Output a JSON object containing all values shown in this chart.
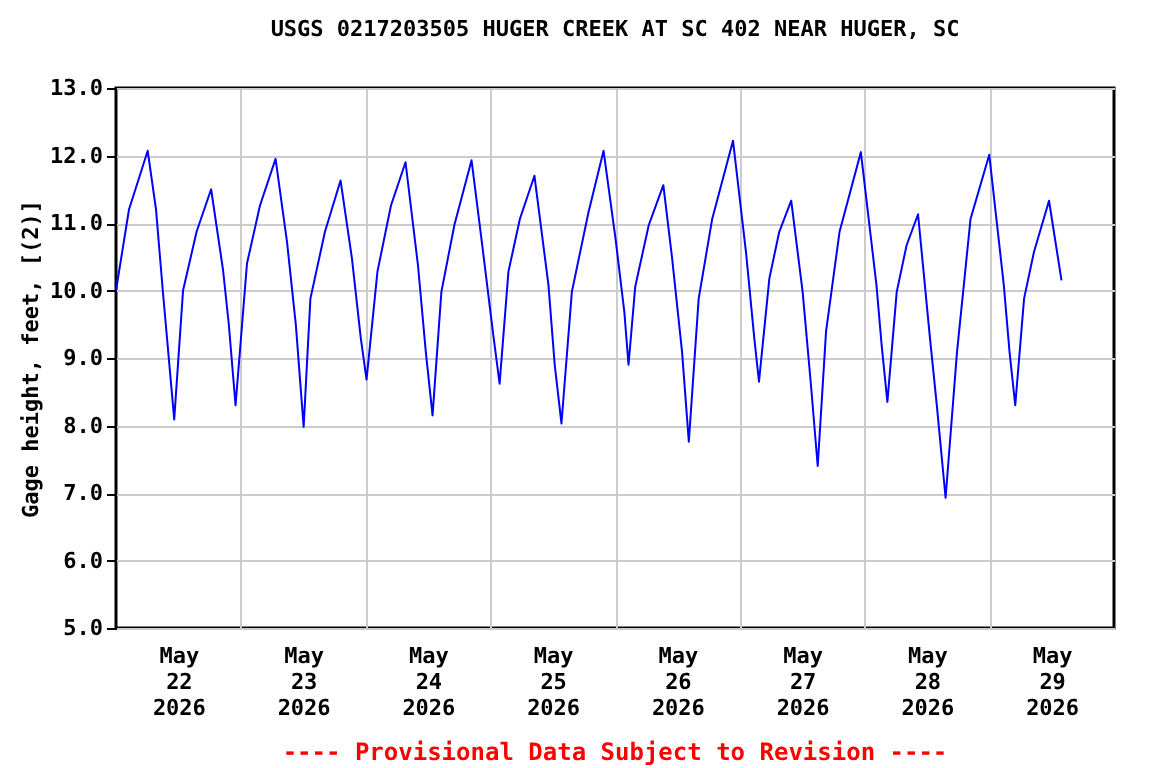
{
  "chart_data": {
    "type": "line",
    "title": "USGS 0217203505 HUGER CREEK AT SC 402 NEAR HUGER, SC",
    "ylabel": "Gage height, feet, [(2)]",
    "annotations": [
      "---- Provisional Data Subject to Revision ----"
    ],
    "x": [
      "2026-05-22T00:00",
      "2026-05-22T02:30",
      "2026-05-22T06:06",
      "2026-05-22T07:42",
      "2026-05-22T09:00",
      "2026-05-22T11:12",
      "2026-05-22T12:54",
      "2026-05-22T15:30",
      "2026-05-22T18:18",
      "2026-05-22T20:36",
      "2026-05-22T21:42",
      "2026-05-22T23:00",
      "2026-05-23T01:12",
      "2026-05-23T03:42",
      "2026-05-23T06:42",
      "2026-05-23T08:54",
      "2026-05-23T10:36",
      "2026-05-23T12:06",
      "2026-05-23T13:24",
      "2026-05-23T16:12",
      "2026-05-23T19:12",
      "2026-05-23T21:24",
      "2026-05-23T23:06",
      "2026-05-24T00:12",
      "2026-05-24T02:18",
      "2026-05-24T04:54",
      "2026-05-24T07:42",
      "2026-05-24T10:06",
      "2026-05-24T11:36",
      "2026-05-24T12:54",
      "2026-05-24T14:36",
      "2026-05-24T17:06",
      "2026-05-24T20:24",
      "2026-05-24T22:18",
      "2026-05-25T00:30",
      "2026-05-25T01:48",
      "2026-05-25T03:30",
      "2026-05-25T05:42",
      "2026-05-25T08:30",
      "2026-05-25T11:12",
      "2026-05-25T12:24",
      "2026-05-25T13:42",
      "2026-05-25T15:42",
      "2026-05-25T18:54",
      "2026-05-25T21:48",
      "2026-05-26T00:06",
      "2026-05-26T01:48",
      "2026-05-26T02:36",
      "2026-05-26T03:54",
      "2026-05-26T06:30",
      "2026-05-26T09:18",
      "2026-05-26T11:00",
      "2026-05-26T12:54",
      "2026-05-26T14:12",
      "2026-05-26T16:06",
      "2026-05-26T18:42",
      "2026-05-26T22:42",
      "2026-05-27T01:12",
      "2026-05-27T02:48",
      "2026-05-27T03:42",
      "2026-05-27T05:42",
      "2026-05-27T07:36",
      "2026-05-27T09:54",
      "2026-05-27T12:06",
      "2026-05-27T13:42",
      "2026-05-27T15:00",
      "2026-05-27T16:36",
      "2026-05-27T19:12",
      "2026-05-27T23:18",
      "2026-05-28T02:18",
      "2026-05-28T03:18",
      "2026-05-28T04:24",
      "2026-05-28T06:12",
      "2026-05-28T08:06",
      "2026-05-28T10:18",
      "2026-05-28T12:36",
      "2026-05-28T13:54",
      "2026-05-28T15:36",
      "2026-05-28T17:48",
      "2026-05-28T20:24",
      "2026-05-29T00:00",
      "2026-05-29T02:48",
      "2026-05-29T03:54",
      "2026-05-29T05:00",
      "2026-05-29T06:42",
      "2026-05-29T08:36",
      "2026-05-29T11:30",
      "2026-05-29T13:54"
    ],
    "series": [
      {
        "color": "#0000ff",
        "values": [
          10.0,
          11.2,
          12.07,
          11.2,
          10.0,
          8.09,
          10.0,
          10.87,
          11.5,
          10.3,
          9.5,
          8.3,
          10.4,
          11.26,
          11.95,
          10.72,
          9.49,
          7.98,
          9.88,
          10.87,
          11.63,
          10.47,
          9.29,
          8.68,
          10.28,
          11.26,
          11.9,
          10.37,
          9.09,
          8.15,
          9.98,
          10.97,
          11.93,
          10.77,
          9.39,
          8.62,
          10.28,
          11.06,
          11.7,
          10.08,
          8.9,
          8.03,
          9.98,
          11.16,
          12.07,
          10.77,
          9.68,
          8.9,
          10.06,
          10.97,
          11.56,
          10.47,
          9.09,
          7.76,
          9.88,
          11.06,
          12.22,
          10.57,
          9.29,
          8.65,
          10.18,
          10.87,
          11.33,
          9.98,
          8.6,
          7.4,
          9.39,
          10.87,
          12.05,
          10.08,
          9.19,
          8.35,
          9.98,
          10.67,
          11.13,
          9.29,
          8.31,
          6.93,
          9.09,
          11.06,
          12.01,
          10.08,
          9.09,
          8.3,
          9.88,
          10.57,
          11.33,
          10.15
        ]
      }
    ],
    "xlim": [
      "2026-05-22T00:00",
      "2026-05-30T00:00"
    ],
    "xticks": [
      {
        "value": "2026-05-22T12:00",
        "label": "May\n22\n2026"
      },
      {
        "value": "2026-05-23T00:00",
        "label": null
      },
      {
        "value": "2026-05-23T12:00",
        "label": "May\n23\n2026"
      },
      {
        "value": "2026-05-24T00:00",
        "label": null
      },
      {
        "value": "2026-05-24T12:00",
        "label": "May\n24\n2026"
      },
      {
        "value": "2026-05-25T00:00",
        "label": null
      },
      {
        "value": "2026-05-25T12:00",
        "label": "May\n25\n2026"
      },
      {
        "value": "2026-05-26T00:00",
        "label": null
      },
      {
        "value": "2026-05-26T12:00",
        "label": "May\n26\n2026"
      },
      {
        "value": "2026-05-27T00:00",
        "label": null
      },
      {
        "value": "2026-05-27T12:00",
        "label": "May\n27\n2026"
      },
      {
        "value": "2026-05-28T00:00",
        "label": null
      },
      {
        "value": "2026-05-28T12:00",
        "label": "May\n28\n2026"
      },
      {
        "value": "2026-05-29T00:00",
        "label": null
      },
      {
        "value": "2026-05-29T12:00",
        "label": "May\n29\n2026"
      }
    ],
    "ylim": [
      5,
      13
    ],
    "yticks": [
      {
        "value": 5,
        "label": "5.0"
      },
      {
        "value": 6,
        "label": "6.0"
      },
      {
        "value": 7,
        "label": "7.0"
      },
      {
        "value": 8,
        "label": "8.0"
      },
      {
        "value": 9,
        "label": "9.0"
      },
      {
        "value": 10,
        "label": "10.0"
      },
      {
        "value": 11,
        "label": "11.0"
      },
      {
        "value": 12,
        "label": "12.0"
      },
      {
        "value": 13,
        "label": "13.0"
      }
    ],
    "grid": true
  }
}
